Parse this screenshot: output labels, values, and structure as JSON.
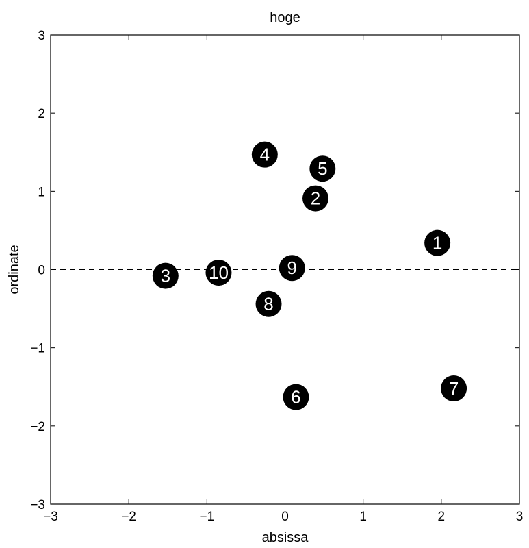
{
  "chart_data": {
    "type": "scatter",
    "title": "hoge",
    "xlabel": "absissa",
    "ylabel": "ordinate",
    "xlim": [
      -3,
      3
    ],
    "ylim": [
      -3,
      3
    ],
    "xticks": [
      -3,
      -2,
      -1,
      0,
      1,
      2,
      3
    ],
    "yticks": [
      -3,
      -2,
      -1,
      0,
      1,
      2,
      3
    ],
    "xtick_labels": [
      "−3",
      "−2",
      "−1",
      "0",
      "1",
      "2",
      "3"
    ],
    "ytick_labels": [
      "−3",
      "−2",
      "−1",
      "0",
      "1",
      "2",
      "3"
    ],
    "grid": false,
    "reference_lines": {
      "x": 0,
      "y": 0,
      "style": "dashed"
    },
    "marker_color": "#000000",
    "label_color": "#ffffff",
    "points": [
      {
        "label": "1",
        "x": 1.95,
        "y": 0.34
      },
      {
        "label": "2",
        "x": 0.39,
        "y": 0.91
      },
      {
        "label": "3",
        "x": -1.53,
        "y": -0.08
      },
      {
        "label": "4",
        "x": -0.26,
        "y": 1.47
      },
      {
        "label": "5",
        "x": 0.48,
        "y": 1.29
      },
      {
        "label": "6",
        "x": 0.14,
        "y": -1.63
      },
      {
        "label": "7",
        "x": 2.16,
        "y": -1.52
      },
      {
        "label": "8",
        "x": -0.21,
        "y": -0.44
      },
      {
        "label": "9",
        "x": 0.09,
        "y": 0.02
      },
      {
        "label": "10",
        "x": -0.85,
        "y": -0.04
      }
    ]
  }
}
